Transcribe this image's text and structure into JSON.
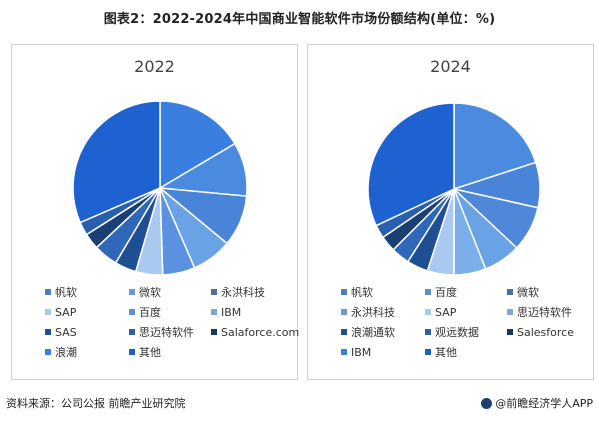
{
  "title": "图表2：2022-2024年中国商业智能软件市场份额结构(单位：%)",
  "footer": {
    "source": "资料来源：公司公报 前瞻产业研究院",
    "brand": "@前瞻经济学人APP"
  },
  "watermark": "前瞻产业研究院",
  "colors": {
    "palette": [
      "#5b8fd8",
      "#3a7fe0",
      "#4a6fa0",
      "#9ec5ef",
      "#5b8fd8",
      "#1f4f93",
      "#7da9d6",
      "#17365d",
      "#1e5fc0",
      "#a8c8ee",
      "#2f6fbf",
      "#1a3f7a"
    ]
  },
  "chart_data": [
    {
      "type": "pie",
      "title": "2022",
      "slices": [
        {
          "name": "帆软",
          "value": 16.5,
          "color": "#3a7fe0"
        },
        {
          "name": "微软",
          "value": 10.0,
          "color": "#4a8be0"
        },
        {
          "name": "永洪科技",
          "value": 9.5,
          "color": "#4a84d8"
        },
        {
          "name": "SAP",
          "value": 7.5,
          "color": "#6aa2e6"
        },
        {
          "name": "百度",
          "value": 6.0,
          "color": "#5b92e0"
        },
        {
          "name": "IBM",
          "value": 5.0,
          "color": "#a9c9f0"
        },
        {
          "name": "SAS",
          "value": 4.0,
          "color": "#1f4f93"
        },
        {
          "name": "思迈特软件",
          "value": 4.5,
          "color": "#2f68b8"
        },
        {
          "name": "Salaforce.com",
          "value": 3.0,
          "color": "#1a3f74"
        },
        {
          "name": "浪潮",
          "value": 2.5,
          "color": "#2a5fae"
        },
        {
          "name": "其他",
          "value": 31.5,
          "color": "#1d62d0"
        }
      ],
      "legend_order": [
        "帆软",
        "微软",
        "永洪科技",
        "SAP",
        "百度",
        "IBM",
        "SAS",
        "思迈特软件",
        "Salaforce.com",
        "浪潮",
        "其他"
      ],
      "legend_colors": [
        "#4a7fc0",
        "#6a9ad6",
        "#4a6fa0",
        "#a8c8ee",
        "#5b8fd8",
        "#7da9d6",
        "#1f4f93",
        "#2a5fae",
        "#17365d",
        "#3a7fe0",
        "#1e5fc0"
      ]
    },
    {
      "type": "pie",
      "title": "2024",
      "slices": [
        {
          "name": "帆软",
          "value": 20.0,
          "color": "#4a8be0"
        },
        {
          "name": "百度",
          "value": 8.5,
          "color": "#4a84d8"
        },
        {
          "name": "微软",
          "value": 8.5,
          "color": "#4f88d8"
        },
        {
          "name": "永洪科技",
          "value": 7.0,
          "color": "#6aa2e6"
        },
        {
          "name": "SAP",
          "value": 6.0,
          "color": "#7aafea"
        },
        {
          "name": "思迈特软件",
          "value": 5.0,
          "color": "#a9c9f0"
        },
        {
          "name": "浪潮通软",
          "value": 4.0,
          "color": "#1f4f93"
        },
        {
          "name": "观远数据",
          "value": 3.5,
          "color": "#2f68b8"
        },
        {
          "name": "Salesforce",
          "value": 3.0,
          "color": "#1a3f74"
        },
        {
          "name": "IBM",
          "value": 2.5,
          "color": "#2a5fae"
        },
        {
          "name": "其他",
          "value": 32.0,
          "color": "#1d62d0"
        }
      ],
      "legend_order": [
        "帆软",
        "百度",
        "微软",
        "永洪科技",
        "SAP",
        "思迈特软件",
        "浪潮通软",
        "观远数据",
        "Salesforce",
        "IBM",
        "其他"
      ],
      "legend_colors": [
        "#4a7fc0",
        "#5b8fd8",
        "#4a6fa0",
        "#6a9ad6",
        "#a8c8ee",
        "#7da9d6",
        "#1f4f93",
        "#2a5fae",
        "#17365d",
        "#3a7fe0",
        "#1e5fc0"
      ]
    }
  ]
}
